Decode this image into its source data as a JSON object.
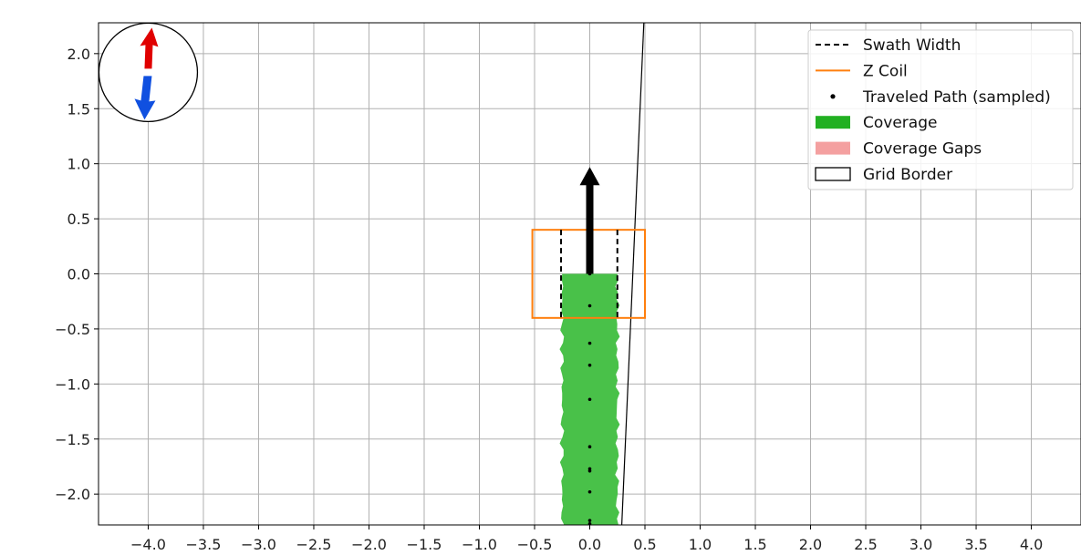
{
  "chart_data": {
    "type": "scatter",
    "title": "",
    "xlabel": "",
    "ylabel": "",
    "xlim": [
      -4.45,
      4.45
    ],
    "ylim": [
      -2.28,
      2.28
    ],
    "grid": true,
    "legend_placement": "top-right",
    "x_ticks": [
      "−4.0",
      "−3.5",
      "−3.0",
      "−2.5",
      "−2.0",
      "−1.5",
      "−1.0",
      "−0.5",
      "0.0",
      "0.5",
      "1.0",
      "1.5",
      "2.0",
      "2.5",
      "3.0",
      "3.5",
      "4.0"
    ],
    "x_tick_values": [
      -4.0,
      -3.5,
      -3.0,
      -2.5,
      -2.0,
      -1.5,
      -1.0,
      -0.5,
      0.0,
      0.5,
      1.0,
      1.5,
      2.0,
      2.5,
      3.0,
      3.5,
      4.0
    ],
    "y_ticks": [
      "2.0",
      "1.5",
      "1.0",
      "0.5",
      "0.0",
      "−0.5",
      "−1.0",
      "−1.5",
      "−2.0"
    ],
    "y_tick_values": [
      2.0,
      1.5,
      1.0,
      0.5,
      0.0,
      -0.5,
      -1.0,
      -1.5,
      -2.0
    ],
    "legend": [
      {
        "label": "Swath Width",
        "kind": "dashed-line",
        "color": "#000000"
      },
      {
        "label": "Z Coil",
        "kind": "line",
        "color": "#ff7f0e"
      },
      {
        "label": "Traveled Path (sampled)",
        "kind": "dot",
        "color": "#000000"
      },
      {
        "label": "Coverage",
        "kind": "patch",
        "color": "#22b022"
      },
      {
        "label": "Coverage Gaps",
        "kind": "patch",
        "color": "#f4a0a0"
      },
      {
        "label": "Grid Border",
        "kind": "outline",
        "color": "#000000"
      }
    ],
    "coverage": {
      "x_min": -0.25,
      "x_max": 0.25,
      "y_min": -2.28,
      "y_max": 0.0,
      "color": "#22b022"
    },
    "z_coil": {
      "x_min": -0.52,
      "x_max": 0.5,
      "y_min": -0.4,
      "y_max": 0.4,
      "color": "#ff7f0e"
    },
    "swath_width": {
      "x_left": -0.26,
      "x_right": 0.25,
      "y_min": -0.4,
      "y_max": 0.4
    },
    "traveled_path": {
      "x": [
        0.0,
        0.0,
        0.0,
        0.0,
        0.0,
        0.0,
        0.0,
        0.0,
        0.0,
        0.0,
        0.0
      ],
      "y": [
        0.0,
        -0.29,
        -0.63,
        -0.83,
        -1.14,
        -1.57,
        -1.77,
        -1.79,
        -1.98,
        -2.24,
        -2.27
      ]
    },
    "heading_arrow": {
      "x": 0.0,
      "y_start": 0.0,
      "y_end": 0.97
    },
    "boundary_line": {
      "x1": 0.29,
      "y1": -2.28,
      "x2": 0.49,
      "y2": 2.28
    },
    "compass": {
      "center_x": -4.0,
      "center_y": 1.83,
      "north_color": "#e00000",
      "south_color": "#1050e0"
    }
  }
}
